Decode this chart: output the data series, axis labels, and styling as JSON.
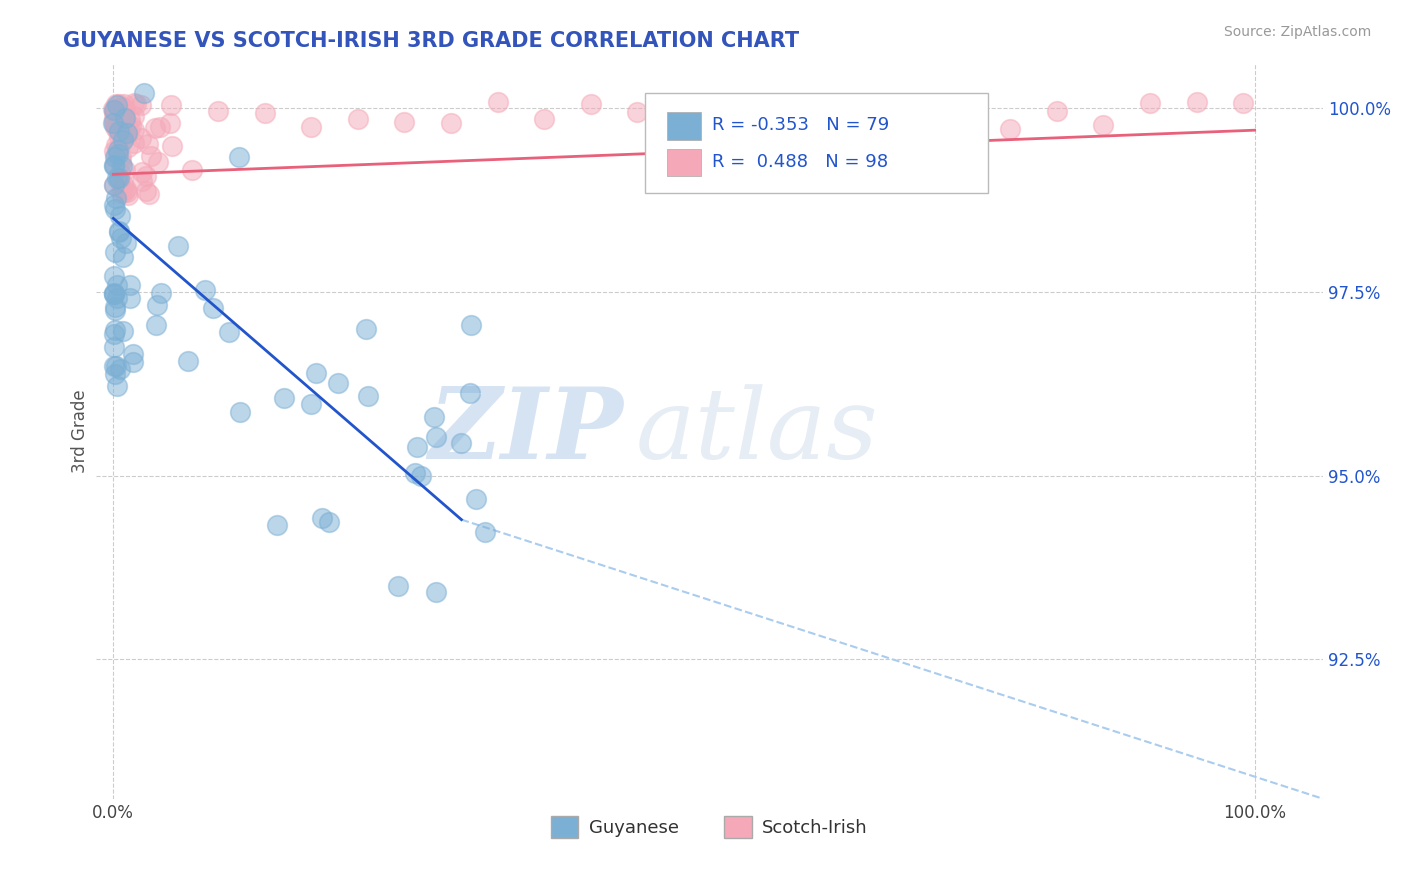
{
  "title": "GUYANESE VS SCOTCH-IRISH 3RD GRADE CORRELATION CHART",
  "title_color": "#3355bb",
  "source_text": "Source: ZipAtlas.com",
  "ylabel": "3rd Grade",
  "watermark_zip": "ZIP",
  "watermark_atlas": "atlas",
  "legend_label_guyanese": "Guyanese",
  "legend_label_scotchirish": "Scotch-Irish",
  "guyanese_color": "#7bafd4",
  "scotchirish_color": "#f4a8b8",
  "guyanese_line_color": "#2255cc",
  "scotchirish_line_color": "#e8607a",
  "trend_dash_color": "#aaccee",
  "R_guyanese": -0.353,
  "N_guyanese": 79,
  "R_scotchirish": 0.488,
  "N_scotchirish": 98,
  "xlim": [
    -0.015,
    1.06
  ],
  "ylim": [
    0.906,
    1.006
  ],
  "ytick_values": [
    0.925,
    0.95,
    0.975,
    1.0
  ],
  "ytick_labels": [
    "92.5%",
    "95.0%",
    "97.5%",
    "100.0%"
  ],
  "xtick_values": [
    0.0,
    1.0
  ],
  "xtick_labels": [
    "0.0%",
    "100.0%"
  ]
}
